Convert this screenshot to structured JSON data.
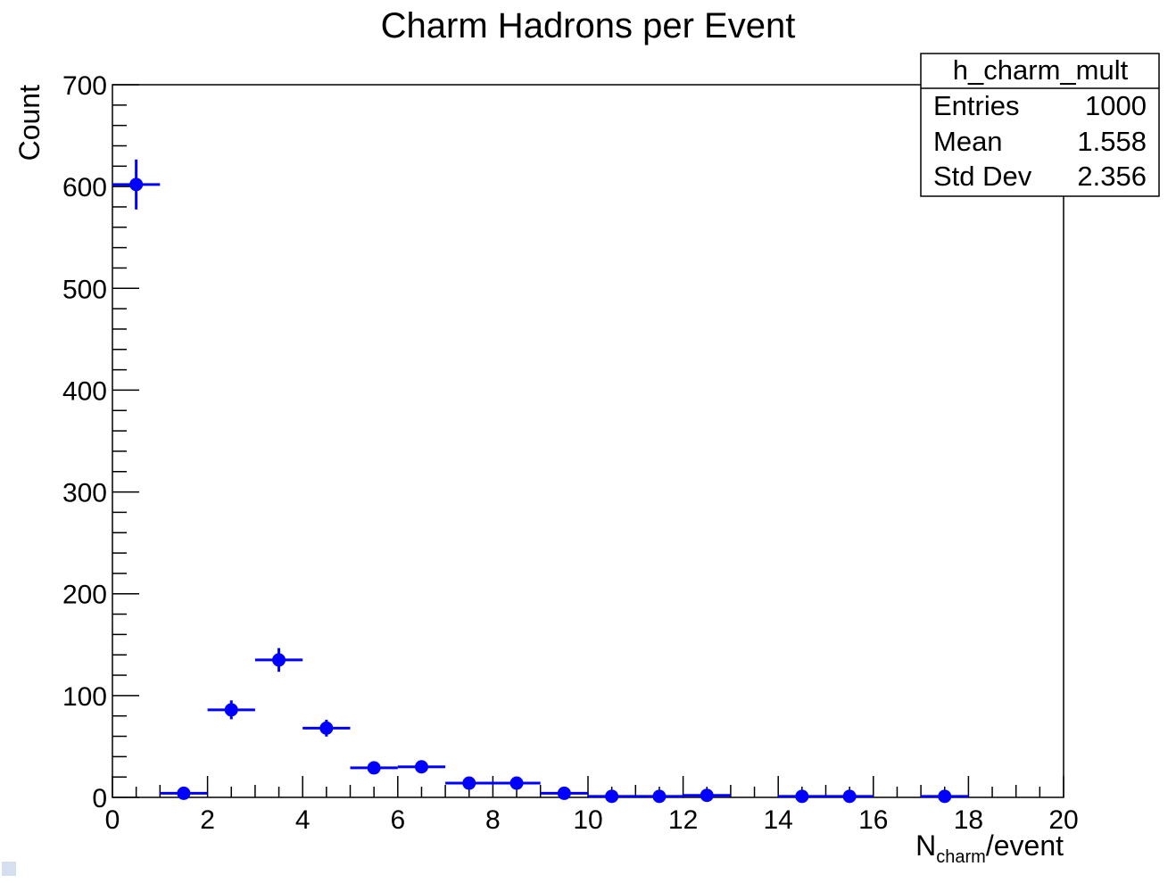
{
  "chart_data": {
    "type": "histogram",
    "title": "Charm Hadrons per Event",
    "xlabel": {
      "base": "N",
      "subscript": "charm",
      "suffix": "/event"
    },
    "ylabel": "Count",
    "xlim": [
      0,
      20
    ],
    "ylim": [
      0,
      700
    ],
    "x_ticks": [
      "0",
      "2",
      "4",
      "6",
      "8",
      "10",
      "12",
      "14",
      "16",
      "18",
      "20"
    ],
    "y_ticks": [
      "0",
      "100",
      "200",
      "300",
      "400",
      "500",
      "600",
      "700"
    ],
    "bin_width": 1,
    "series": [
      {
        "color": "#0000ff",
        "x": [
          0.5,
          1.5,
          2.5,
          3.5,
          4.5,
          5.5,
          6.5,
          7.5,
          8.5,
          9.5,
          10.5,
          11.5,
          12.5,
          13.5,
          14.5,
          15.5,
          16.5,
          17.5,
          18.5,
          19.5
        ],
        "values": [
          602,
          4,
          86,
          135,
          68,
          29,
          30,
          14,
          14,
          4,
          1,
          1,
          2,
          0,
          1,
          1,
          0,
          1,
          0,
          0
        ]
      }
    ],
    "stats_box": {
      "title": "h_charm_mult",
      "rows": [
        {
          "label": "Entries",
          "value": "1000"
        },
        {
          "label": "Mean",
          "value": "1.558"
        },
        {
          "label": "Std Dev",
          "value": "2.356"
        }
      ]
    }
  }
}
